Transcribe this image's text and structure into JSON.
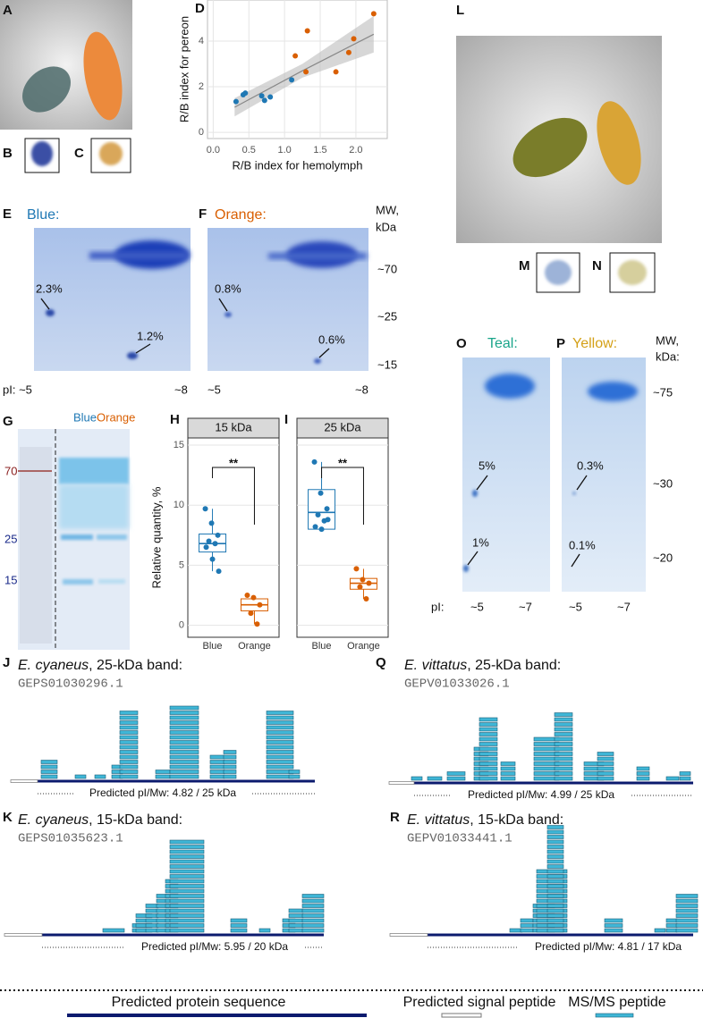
{
  "letters": [
    "A",
    "B",
    "C",
    "D",
    "E",
    "F",
    "G",
    "H",
    "I",
    "J",
    "K",
    "L",
    "M",
    "N",
    "O",
    "P",
    "Q",
    "R"
  ],
  "gel_E": {
    "title": "Blue:",
    "spots": [
      "2.3%",
      "1.2%"
    ],
    "pI": [
      "pI: ~5",
      "~8"
    ]
  },
  "gel_F": {
    "title": "Orange:",
    "spots": [
      "0.8%",
      "0.6%"
    ],
    "pI": [
      "~5",
      "~8"
    ],
    "mw": [
      "MW,",
      "kDa",
      "~70",
      "~25",
      "~15"
    ]
  },
  "gel_G": {
    "lanes": [
      "Blue",
      "Orange"
    ],
    "markers": [
      "70",
      "25",
      "15"
    ]
  },
  "gel_O": {
    "title": "Teal:",
    "spots": [
      "5%",
      "1%"
    ]
  },
  "gel_P": {
    "title": "Yellow:",
    "spots": [
      "0.3%",
      "0.1%"
    ],
    "mw": [
      "MW,",
      "kDa:",
      "~75",
      "~30",
      "~20"
    ]
  },
  "pI_OP": [
    "pI:",
    "~5",
    "~7",
    "~5",
    "~7"
  ],
  "coverage": [
    {
      "species": "E. cyaneus",
      "band": ", 25-kDa band:",
      "accession": "GEPS01030296.1",
      "caption": "Predicted pI/Mw: 4.82 / 25 kDa"
    },
    {
      "species": "E. cyaneus",
      "band": ", 15-kDa band:",
      "accession": "GEPS01035623.1",
      "caption": "Predicted pI/Mw: 5.95 / 20 kDa"
    },
    {
      "species": "E. vittatus",
      "band": ", 25-kDa band:",
      "accession": "GEPV01033026.1",
      "caption": "Predicted pI/Mw: 4.99 / 25 kDa"
    },
    {
      "species": "E. vittatus",
      "band": ", 15-kDa band:",
      "accession": "GEPV01033441.1",
      "caption": "Predicted pI/Mw: 4.81 / 17 kDa"
    }
  ],
  "legend": [
    "Predicted protein sequence",
    "Predicted signal peptide",
    "MS/MS peptide"
  ],
  "chart_data": [
    {
      "type": "scatter",
      "xlabel": "R/B index for hemolymph",
      "ylabel": "R/B index for pereon",
      "xlim": [
        -0.08,
        2.44
      ],
      "ylim": [
        -0.27,
        5.8
      ],
      "xticks": [
        {
          "value": 0,
          "label": "0.0"
        },
        {
          "value": 0.5,
          "label": "0.5"
        },
        {
          "value": 1,
          "label": "1.0"
        },
        {
          "value": 1.5,
          "label": "1.5"
        },
        {
          "value": 2,
          "label": "2.0"
        }
      ],
      "yticks": [
        0,
        2,
        4
      ],
      "grid": true,
      "series": [
        {
          "color": "#1f78b4",
          "x": [
            0.32,
            0.42,
            0.45,
            0.68,
            0.72,
            0.8,
            1.1
          ],
          "y": [
            1.35,
            1.65,
            1.72,
            1.6,
            1.4,
            1.55,
            2.3
          ]
        },
        {
          "color": "#d95f02",
          "x": [
            1.15,
            1.3,
            1.32,
            1.72,
            1.9,
            1.97,
            2.25
          ],
          "y": [
            3.35,
            2.65,
            4.45,
            2.65,
            3.5,
            4.1,
            5.2
          ]
        }
      ],
      "fit": {
        "x": [
          0.3,
          1.25,
          2.25
        ],
        "y": [
          1.1,
          2.7,
          4.3
        ],
        "lower": [
          0.7,
          2.4,
          3.5
        ],
        "upper": [
          1.5,
          3.0,
          5.1
        ]
      }
    },
    {
      "type": "box",
      "title": "15 kDa",
      "ylabel": "Relative quantity, %",
      "categories": [
        "Blue",
        "Orange"
      ],
      "ylim": [
        -1,
        15.6
      ],
      "yticks": [
        0,
        5,
        10,
        15
      ],
      "annotation": "**",
      "boxes": [
        {
          "color": "#1f78b4",
          "low": 4.5,
          "q1": 6.1,
          "median": 6.8,
          "q3": 7.6,
          "high": 9.7,
          "points": [
            9.7,
            8.5,
            7.5,
            7.0,
            6.8,
            6.5,
            5.5,
            4.5
          ]
        },
        {
          "color": "#d95f02",
          "low": 0.1,
          "q1": 1.2,
          "median": 1.7,
          "q3": 2.2,
          "high": 2.5,
          "points": [
            2.5,
            2.3,
            1.7,
            1.0,
            0.1
          ]
        }
      ]
    },
    {
      "type": "box",
      "title": "25 kDa",
      "categories": [
        "Blue",
        "Orange"
      ],
      "ylim": [
        -1,
        15.6
      ],
      "yticks": [
        0,
        5,
        10,
        15
      ],
      "annotation": "**",
      "boxes": [
        {
          "color": "#1f78b4",
          "low": 8.0,
          "q1": 8.0,
          "median": 9.4,
          "q3": 11.3,
          "high": 13.6,
          "points": [
            13.6,
            11.0,
            9.7,
            9.2,
            8.7,
            8.2,
            8.0,
            8.8
          ]
        },
        {
          "color": "#d95f02",
          "low": 2.2,
          "q1": 3.0,
          "median": 3.5,
          "q3": 3.9,
          "high": 4.7,
          "points": [
            4.7,
            3.8,
            3.5,
            3.2,
            2.2
          ]
        }
      ]
    }
  ]
}
